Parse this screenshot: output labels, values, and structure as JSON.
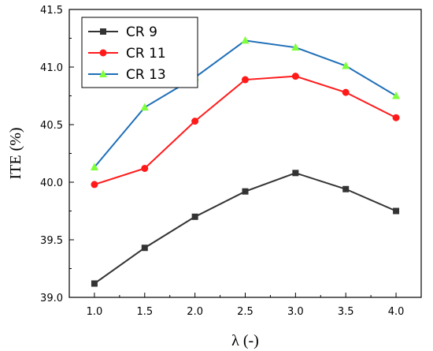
{
  "chart_data": {
    "type": "line",
    "title": "",
    "xlabel": "λ (-)",
    "ylabel": "ITE (%)",
    "x": [
      1.0,
      1.5,
      2.0,
      2.5,
      3.0,
      3.5,
      4.0
    ],
    "xlim": [
      0.75,
      4.25
    ],
    "ylim": [
      39.0,
      41.5
    ],
    "x_ticks": [
      "1.0",
      "1.5",
      "2.0",
      "2.5",
      "3.0",
      "3.5",
      "4.0"
    ],
    "y_ticks": [
      "39.0",
      "39.5",
      "40.0",
      "40.5",
      "41.0",
      "41.5"
    ],
    "grid": false,
    "legend_position": "top-left",
    "series": [
      {
        "name": "CR 9",
        "color": "#333333",
        "marker": "square",
        "values": [
          39.12,
          39.43,
          39.7,
          39.92,
          40.08,
          39.94,
          39.75
        ]
      },
      {
        "name": "CR 11",
        "color": "#ff1a1a",
        "marker": "circle",
        "values": [
          39.98,
          40.12,
          40.53,
          40.89,
          40.92,
          40.78,
          40.56
        ]
      },
      {
        "name": "CR 13",
        "color": "#1f6fb8",
        "marker": "triangle",
        "values": [
          40.13,
          40.65,
          40.91,
          41.23,
          41.17,
          41.01,
          40.75
        ]
      }
    ]
  }
}
